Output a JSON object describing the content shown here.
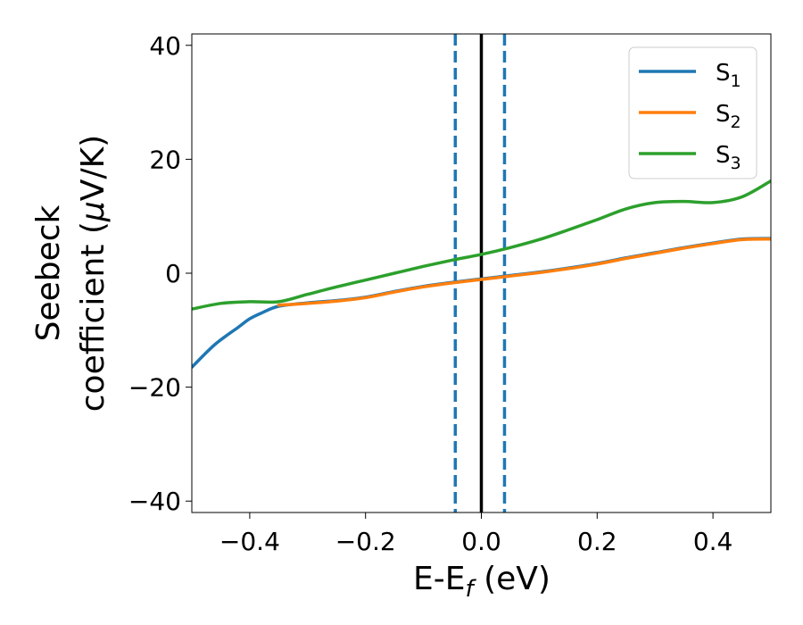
{
  "chart_data": {
    "type": "line",
    "xlabel": "E-E",
    "xlabel_sub": "f",
    "xlabel_unit": " (eV)",
    "ylabel_line1": "Seebeck",
    "ylabel_line2": "coefficient  (",
    "ylabel_mu": "μ",
    "ylabel_line2_end": "V/K)",
    "xlim": [
      -0.5,
      0.5
    ],
    "ylim": [
      -42,
      42
    ],
    "xticks": [
      -0.4,
      -0.2,
      0.0,
      0.2,
      0.4
    ],
    "xtick_labels": [
      "−0.4",
      "−0.2",
      "0.0",
      "0.2",
      "0.4"
    ],
    "yticks": [
      -40,
      -20,
      0,
      20,
      40
    ],
    "ytick_labels": [
      "−40",
      "−20",
      "0",
      "20",
      "40"
    ],
    "grid": false,
    "legend_position": "top-right",
    "series": [
      {
        "name": "S",
        "sub": "1",
        "color": "#1f77b4",
        "x": [
          -0.5,
          -0.46,
          -0.42,
          -0.4,
          -0.38,
          -0.35,
          -0.3,
          -0.25,
          -0.2,
          -0.15,
          -0.1,
          -0.05,
          0.0,
          0.05,
          0.1,
          0.15,
          0.2,
          0.25,
          0.3,
          0.35,
          0.4,
          0.45,
          0.5
        ],
        "y": [
          -16.5,
          -12.5,
          -9.5,
          -8.0,
          -7.0,
          -5.8,
          -5.2,
          -4.8,
          -4.2,
          -3.2,
          -2.3,
          -1.6,
          -1.0,
          -0.4,
          0.2,
          0.9,
          1.7,
          2.7,
          3.6,
          4.5,
          5.3,
          6.0,
          6.1
        ]
      },
      {
        "name": "S",
        "sub": "2",
        "color": "#ff7f0e",
        "x": [
          -0.35,
          -0.3,
          -0.25,
          -0.2,
          -0.15,
          -0.1,
          -0.05,
          0.0,
          0.05,
          0.1,
          0.15,
          0.2,
          0.25,
          0.3,
          0.35,
          0.4,
          0.45,
          0.5
        ],
        "y": [
          -5.6,
          -5.3,
          -4.9,
          -4.3,
          -3.3,
          -2.4,
          -1.7,
          -1.1,
          -0.5,
          0.1,
          0.8,
          1.6,
          2.6,
          3.5,
          4.4,
          5.2,
          5.9,
          6.0
        ]
      },
      {
        "name": "S",
        "sub": "3",
        "color": "#2ca02c",
        "x": [
          -0.5,
          -0.45,
          -0.4,
          -0.35,
          -0.3,
          -0.25,
          -0.2,
          -0.15,
          -0.1,
          -0.05,
          0.0,
          0.05,
          0.1,
          0.15,
          0.2,
          0.25,
          0.3,
          0.35,
          0.4,
          0.45,
          0.5
        ],
        "y": [
          -6.3,
          -5.3,
          -5.0,
          -5.0,
          -3.7,
          -2.4,
          -1.2,
          0.0,
          1.2,
          2.3,
          3.3,
          4.5,
          5.9,
          7.6,
          9.4,
          11.3,
          12.4,
          12.6,
          12.4,
          13.4,
          16.2
        ]
      }
    ],
    "vlines": [
      {
        "x": 0.0,
        "color": "#000000",
        "style": "solid"
      },
      {
        "x": -0.045,
        "color": "#1f77b4",
        "style": "dashed"
      },
      {
        "x": 0.04,
        "color": "#1f77b4",
        "style": "dashed"
      }
    ]
  }
}
